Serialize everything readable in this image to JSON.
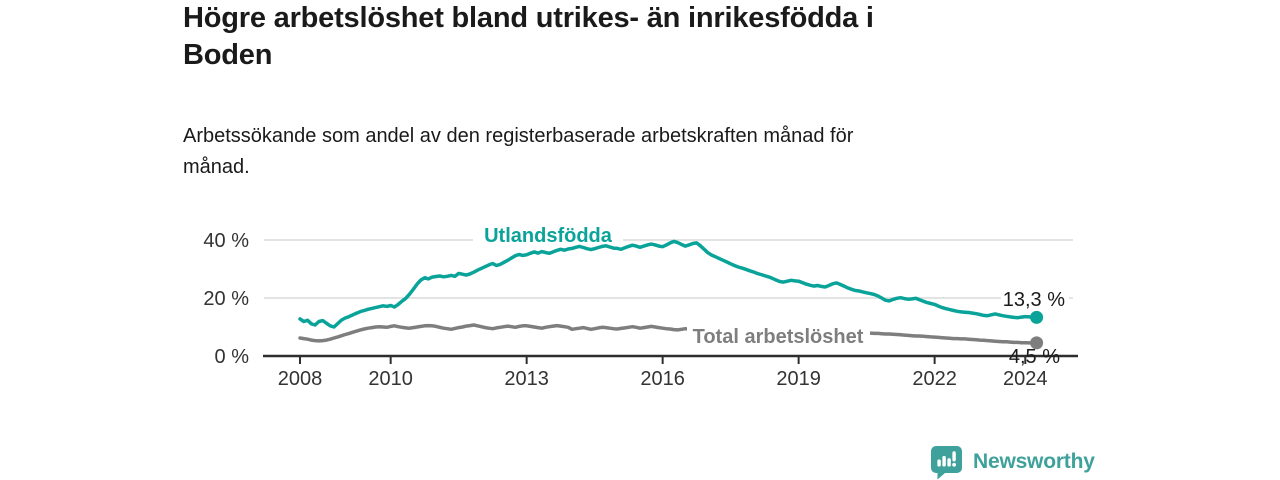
{
  "header": {
    "title_lines": [
      "Högre arbetslöshet bland utrikes- än inrikesfödda i",
      "Boden"
    ],
    "subtitle_lines": [
      "Arbetssökande som andel av den registerbaserade arbetskraften månad för",
      "månad."
    ]
  },
  "footer": {
    "brand": "Newsworthy",
    "logo_icon": "newsworthy-speech-bubble-bar-chart-icon"
  },
  "colors": {
    "teal": "#0aa39a",
    "gray": "#7e7e7e",
    "grid": "#dadada",
    "axis": "#2e2e2e",
    "tick_text": "#333333",
    "end_label": "#1a1a1a",
    "logo": "#3ea19b",
    "background": "#ffffff"
  },
  "chart_data": {
    "type": "line",
    "title": "",
    "xlabel": "",
    "ylabel": "",
    "ylim": [
      0,
      44
    ],
    "xlim": [
      2007.2,
      2025.1
    ],
    "grid": "horizontal",
    "legend_position": "inline-labels",
    "y_ticks": [
      {
        "label": "0 %",
        "value": 0
      },
      {
        "label": "20 %",
        "value": 20
      },
      {
        "label": "40 %",
        "value": 40
      }
    ],
    "x_ticks": [
      {
        "label": "2008",
        "year": 2008
      },
      {
        "label": "2010",
        "year": 2010
      },
      {
        "label": "2013",
        "year": 2013
      },
      {
        "label": "2016",
        "year": 2016
      },
      {
        "label": "2019",
        "year": 2019
      },
      {
        "label": "2022",
        "year": 2022
      },
      {
        "label": "2024",
        "year": 2024
      }
    ],
    "series": [
      {
        "name": "Utlandsfödda",
        "color": "#0aa39a",
        "end_label": "13,3 %",
        "end_value": 13.3,
        "start_year": 2008,
        "start_month": 1,
        "interval": "monthly",
        "values": [
          12.8,
          11.9,
          12.3,
          11.1,
          10.7,
          11.9,
          12.2,
          11.3,
          10.4,
          10.0,
          11.2,
          12.4,
          13.1,
          13.6,
          14.2,
          14.8,
          15.3,
          15.7,
          16.1,
          16.4,
          16.7,
          17.0,
          17.3,
          17.1,
          17.4,
          16.9,
          17.8,
          18.9,
          19.9,
          21.3,
          23.0,
          24.8,
          26.2,
          27.0,
          26.6,
          27.2,
          27.4,
          27.6,
          27.3,
          27.5,
          27.8,
          27.5,
          28.5,
          28.2,
          27.9,
          28.3,
          28.9,
          29.6,
          30.2,
          30.8,
          31.4,
          31.9,
          31.2,
          31.6,
          32.3,
          33.0,
          33.8,
          34.6,
          35.0,
          34.7,
          34.9,
          35.4,
          35.9,
          35.5,
          36.0,
          35.7,
          35.4,
          35.9,
          36.4,
          36.8,
          36.5,
          36.9,
          37.1,
          37.5,
          37.8,
          37.4,
          37.0,
          36.7,
          37.0,
          37.4,
          37.8,
          38.0,
          37.6,
          37.2,
          37.1,
          36.8,
          37.3,
          37.8,
          38.2,
          37.9,
          37.5,
          37.9,
          38.3,
          38.6,
          38.3,
          37.9,
          37.7,
          38.3,
          39.0,
          39.5,
          39.1,
          38.5,
          37.9,
          38.3,
          38.8,
          39.0,
          38.0,
          36.8,
          35.6,
          34.8,
          34.2,
          33.6,
          33.0,
          32.4,
          31.8,
          31.2,
          30.7,
          30.3,
          29.9,
          29.4,
          29.0,
          28.5,
          28.1,
          27.7,
          27.3,
          26.8,
          26.2,
          25.7,
          25.5,
          25.8,
          26.1,
          25.9,
          25.8,
          25.3,
          24.8,
          24.4,
          24.1,
          24.3,
          24.0,
          23.8,
          24.3,
          24.9,
          25.2,
          24.7,
          24.1,
          23.5,
          23.0,
          22.6,
          22.4,
          22.1,
          21.8,
          21.5,
          21.2,
          20.7,
          20.0,
          19.2,
          19.0,
          19.5,
          19.9,
          20.1,
          19.8,
          19.6,
          19.7,
          19.9,
          19.4,
          18.9,
          18.4,
          18.1,
          17.8,
          17.2,
          16.7,
          16.3,
          16.0,
          15.7,
          15.4,
          15.2,
          15.1,
          15.0,
          14.8,
          14.6,
          14.3,
          14.0,
          13.9,
          14.2,
          14.5,
          14.2,
          13.9,
          13.7,
          13.5,
          13.3,
          13.2,
          13.4,
          13.6,
          13.5,
          13.3,
          13.3
        ]
      },
      {
        "name": "Total arbetslöshet",
        "color": "#7e7e7e",
        "end_label": "4,5 %",
        "end_value": 4.5,
        "start_year": 2008,
        "start_month": 1,
        "interval": "monthly",
        "values": [
          6.2,
          6.0,
          5.8,
          5.5,
          5.3,
          5.2,
          5.3,
          5.5,
          5.8,
          6.2,
          6.6,
          7.0,
          7.4,
          7.8,
          8.2,
          8.6,
          9.0,
          9.3,
          9.6,
          9.8,
          10.0,
          10.1,
          10.0,
          9.9,
          10.2,
          10.4,
          10.1,
          9.9,
          9.7,
          9.6,
          9.8,
          10.0,
          10.2,
          10.4,
          10.5,
          10.4,
          10.2,
          9.9,
          9.6,
          9.4,
          9.2,
          9.5,
          9.8,
          10.0,
          10.3,
          10.5,
          10.7,
          10.4,
          10.1,
          9.8,
          9.6,
          9.4,
          9.7,
          9.9,
          10.1,
          10.3,
          10.1,
          9.9,
          10.2,
          10.4,
          10.4,
          10.2,
          10.0,
          9.8,
          9.6,
          9.9,
          10.1,
          10.3,
          10.5,
          10.3,
          10.1,
          9.9,
          9.2,
          9.4,
          9.6,
          9.8,
          9.5,
          9.2,
          9.4,
          9.7,
          9.9,
          9.8,
          9.6,
          9.4,
          9.3,
          9.5,
          9.7,
          9.9,
          10.1,
          9.9,
          9.6,
          9.8,
          10.0,
          10.2,
          10.0,
          9.8,
          9.6,
          9.4,
          9.3,
          9.1,
          9.0,
          9.2,
          9.4,
          9.2,
          9.0,
          8.9,
          8.8,
          8.8,
          8.8,
          8.9,
          9.0,
          9.1,
          9.0,
          8.9,
          8.8,
          8.7,
          8.8,
          8.9,
          9.0,
          8.9,
          8.8,
          8.7,
          8.6,
          8.5,
          8.4,
          8.3,
          8.2,
          8.1,
          8.2,
          8.3,
          8.4,
          8.3,
          8.2,
          8.1,
          8.0,
          7.9,
          7.8,
          7.9,
          8.0,
          8.1,
          8.2,
          8.3,
          8.4,
          8.5,
          8.6,
          8.7,
          8.8,
          8.7,
          8.5,
          8.3,
          8.1,
          7.9,
          7.8,
          7.8,
          7.7,
          7.6,
          7.6,
          7.5,
          7.4,
          7.3,
          7.2,
          7.1,
          7.0,
          6.9,
          6.9,
          6.8,
          6.7,
          6.6,
          6.5,
          6.4,
          6.3,
          6.2,
          6.1,
          6.0,
          6.0,
          5.9,
          5.9,
          5.8,
          5.7,
          5.6,
          5.5,
          5.4,
          5.3,
          5.2,
          5.1,
          5.0,
          4.9,
          4.9,
          4.8,
          4.7,
          4.7,
          4.6,
          4.6,
          4.5,
          4.5,
          4.5
        ]
      }
    ]
  }
}
